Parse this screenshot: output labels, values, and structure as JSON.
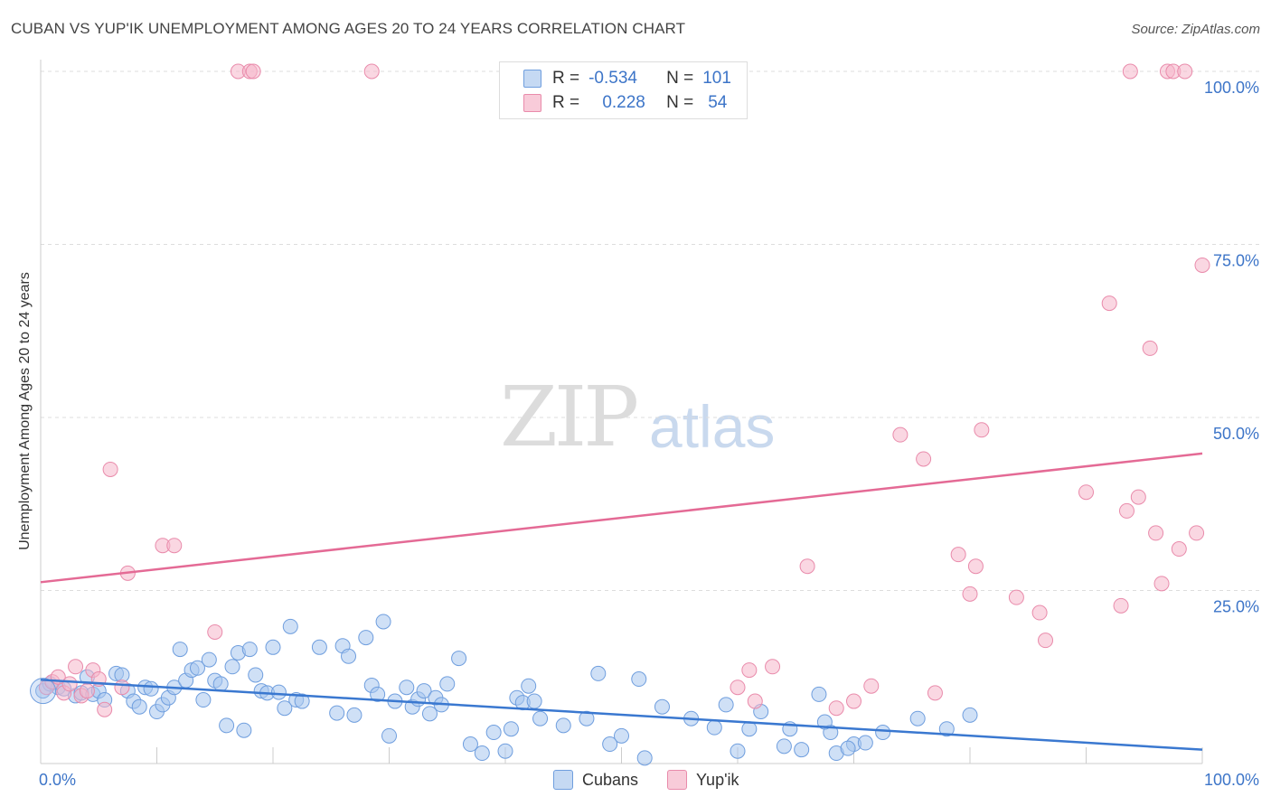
{
  "header": {
    "title": "CUBAN VS YUP'IK UNEMPLOYMENT AMONG AGES 20 TO 24 YEARS CORRELATION CHART",
    "source": "Source: ZipAtlas.com"
  },
  "watermark": {
    "zip": "ZIP",
    "atlas": "atlas"
  },
  "legend": {
    "rows": [
      {
        "r_label": "R =",
        "r_value": "-0.534",
        "n_label": "N =",
        "n_value": "101",
        "color": "#a8c6ef"
      },
      {
        "r_label": "R =",
        "r_value": "0.228",
        "n_label": "N =",
        "n_value": "54",
        "color": "#f5b6ca"
      }
    ]
  },
  "bottom_legend": {
    "cubans": "Cubans",
    "yupik": "Yup'ik"
  },
  "colors": {
    "blue_fill": "#a8c6ef",
    "blue_stroke": "#6f9ede",
    "blue_line": "#3a78d0",
    "pink_fill": "#f5b6ca",
    "pink_stroke": "#e98bab",
    "pink_line": "#e46a95",
    "tick_label": "#3d75c8",
    "grid": "#dddddd"
  },
  "chart_data": {
    "type": "scatter",
    "title": "CUBAN VS YUP'IK UNEMPLOYMENT AMONG AGES 20 TO 24 YEARS CORRELATION CHART",
    "xlabel": "",
    "ylabel": "Unemployment Among Ages 20 to 24 years",
    "xlim": [
      0,
      100
    ],
    "ylim": [
      0,
      100
    ],
    "x_tick_labels": [
      "0.0%",
      "100.0%"
    ],
    "y_tick_labels": [
      "25.0%",
      "50.0%",
      "75.0%",
      "100.0%"
    ],
    "grid": true,
    "series": [
      {
        "name": "Cubans",
        "r": -0.534,
        "n": 101,
        "trend": {
          "x": [
            0,
            100
          ],
          "y": [
            12.1,
            2.0
          ]
        },
        "points": [
          [
            0.2,
            10.5
          ],
          [
            0.8,
            11.5
          ],
          [
            1.5,
            11.0
          ],
          [
            2.0,
            10.8
          ],
          [
            3.0,
            9.8
          ],
          [
            3.5,
            10.2
          ],
          [
            4.0,
            12.5
          ],
          [
            4.5,
            10.0
          ],
          [
            5.0,
            10.5
          ],
          [
            5.5,
            9.2
          ],
          [
            6.5,
            13.0
          ],
          [
            7.0,
            12.8
          ],
          [
            7.5,
            10.5
          ],
          [
            8.0,
            9.0
          ],
          [
            8.5,
            8.2
          ],
          [
            9.0,
            11.0
          ],
          [
            9.5,
            10.8
          ],
          [
            10.0,
            7.5
          ],
          [
            10.5,
            8.5
          ],
          [
            11.0,
            9.5
          ],
          [
            11.5,
            11.0
          ],
          [
            12.0,
            16.5
          ],
          [
            12.5,
            12.0
          ],
          [
            13.0,
            13.5
          ],
          [
            13.5,
            13.8
          ],
          [
            14.0,
            9.2
          ],
          [
            14.5,
            15.0
          ],
          [
            15.0,
            12.0
          ],
          [
            15.5,
            11.5
          ],
          [
            16.0,
            5.5
          ],
          [
            16.5,
            14.0
          ],
          [
            17.0,
            16.0
          ],
          [
            17.5,
            4.8
          ],
          [
            18.0,
            16.5
          ],
          [
            18.5,
            12.8
          ],
          [
            19.0,
            10.5
          ],
          [
            19.5,
            10.2
          ],
          [
            20.0,
            16.8
          ],
          [
            20.5,
            10.3
          ],
          [
            21.0,
            8.0
          ],
          [
            21.5,
            19.8
          ],
          [
            22.0,
            9.2
          ],
          [
            22.5,
            9.0
          ],
          [
            24.0,
            16.8
          ],
          [
            25.5,
            7.3
          ],
          [
            26.0,
            17.0
          ],
          [
            26.5,
            15.5
          ],
          [
            27.0,
            7.0
          ],
          [
            28.0,
            18.2
          ],
          [
            28.5,
            11.3
          ],
          [
            29.0,
            10.0
          ],
          [
            29.5,
            20.5
          ],
          [
            30.0,
            4.0
          ],
          [
            30.5,
            9.0
          ],
          [
            31.5,
            11.0
          ],
          [
            32.0,
            8.2
          ],
          [
            32.5,
            9.3
          ],
          [
            33.0,
            10.5
          ],
          [
            33.5,
            7.2
          ],
          [
            34.0,
            9.5
          ],
          [
            34.5,
            8.5
          ],
          [
            35.0,
            11.5
          ],
          [
            36.0,
            15.2
          ],
          [
            37.0,
            2.8
          ],
          [
            38.0,
            1.5
          ],
          [
            39.0,
            4.5
          ],
          [
            40.0,
            1.8
          ],
          [
            40.5,
            5.0
          ],
          [
            41.0,
            9.5
          ],
          [
            41.5,
            8.8
          ],
          [
            42.0,
            11.2
          ],
          [
            42.5,
            9.0
          ],
          [
            43.0,
            6.5
          ],
          [
            45.0,
            5.5
          ],
          [
            47.0,
            6.5
          ],
          [
            48.0,
            13.0
          ],
          [
            49.0,
            2.8
          ],
          [
            50.0,
            4.0
          ],
          [
            51.5,
            12.2
          ],
          [
            52.0,
            0.8
          ],
          [
            53.5,
            8.2
          ],
          [
            56.0,
            6.5
          ],
          [
            58.0,
            5.2
          ],
          [
            59.0,
            8.5
          ],
          [
            60.0,
            1.8
          ],
          [
            61.0,
            5.0
          ],
          [
            62.0,
            7.5
          ],
          [
            64.0,
            2.5
          ],
          [
            65.5,
            2.0
          ],
          [
            67.0,
            10.0
          ],
          [
            68.0,
            4.5
          ],
          [
            68.5,
            1.5
          ],
          [
            70.0,
            2.8
          ],
          [
            72.5,
            4.5
          ],
          [
            75.5,
            6.5
          ],
          [
            78.0,
            5.0
          ],
          [
            80.0,
            7.0
          ],
          [
            67.5,
            6.0
          ],
          [
            69.5,
            2.2
          ],
          [
            71.0,
            3.0
          ],
          [
            64.5,
            5.0
          ]
        ]
      },
      {
        "name": "Yup'ik",
        "r": 0.228,
        "n": 54,
        "trend": {
          "x": [
            0,
            100
          ],
          "y": [
            26.2,
            44.8
          ]
        },
        "points": [
          [
            0.5,
            11.0
          ],
          [
            1.0,
            11.8
          ],
          [
            1.5,
            12.5
          ],
          [
            2.0,
            10.2
          ],
          [
            2.5,
            11.5
          ],
          [
            3.0,
            14.0
          ],
          [
            3.5,
            9.8
          ],
          [
            4.0,
            10.5
          ],
          [
            4.5,
            13.5
          ],
          [
            5.0,
            12.2
          ],
          [
            5.5,
            7.8
          ],
          [
            6.0,
            42.5
          ],
          [
            7.0,
            11.0
          ],
          [
            7.5,
            27.5
          ],
          [
            10.5,
            31.5
          ],
          [
            11.5,
            31.5
          ],
          [
            15.0,
            19.0
          ],
          [
            17.0,
            100.0
          ],
          [
            18.0,
            100.0
          ],
          [
            18.3,
            100.0
          ],
          [
            28.5,
            100.0
          ],
          [
            60.0,
            11.0
          ],
          [
            61.0,
            13.5
          ],
          [
            61.5,
            9.0
          ],
          [
            63.0,
            14.0
          ],
          [
            66.0,
            28.5
          ],
          [
            68.5,
            8.0
          ],
          [
            70.0,
            9.0
          ],
          [
            71.5,
            11.2
          ],
          [
            74.0,
            47.5
          ],
          [
            76.0,
            44.0
          ],
          [
            77.0,
            10.2
          ],
          [
            79.0,
            30.2
          ],
          [
            80.0,
            24.5
          ],
          [
            80.5,
            28.5
          ],
          [
            81.0,
            48.2
          ],
          [
            84.0,
            24.0
          ],
          [
            86.0,
            21.8
          ],
          [
            86.5,
            17.8
          ],
          [
            90.0,
            39.2
          ],
          [
            92.0,
            66.5
          ],
          [
            93.0,
            22.8
          ],
          [
            93.5,
            36.5
          ],
          [
            94.5,
            38.5
          ],
          [
            95.5,
            60.0
          ],
          [
            96.0,
            33.3
          ],
          [
            96.5,
            26.0
          ],
          [
            97.0,
            100.0
          ],
          [
            97.5,
            100.0
          ],
          [
            98.0,
            31.0
          ],
          [
            98.5,
            100.0
          ],
          [
            99.5,
            33.3
          ],
          [
            100.0,
            72.0
          ],
          [
            93.8,
            100.0
          ]
        ]
      }
    ]
  }
}
